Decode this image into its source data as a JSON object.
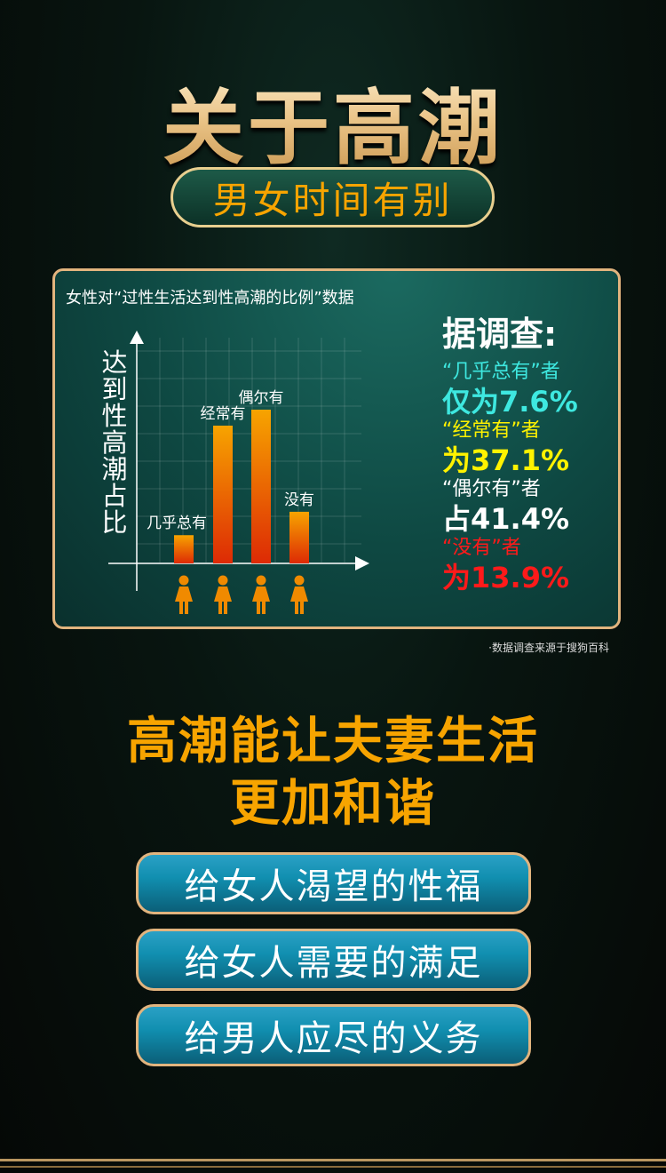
{
  "header": {
    "title": "关于高潮",
    "subtitle": "男女时间有别"
  },
  "panel": {
    "title": "女性对“过性生活达到性高潮的比例”数据",
    "heading": "据调查:",
    "findings": [
      {
        "label": "“几乎总有”者",
        "value": "仅为7.6%",
        "color": "#3ee8e0"
      },
      {
        "label": "“经常有”者",
        "value": "为37.1%",
        "color": "#fff200"
      },
      {
        "label": "“偶尔有”者",
        "value": "占41.4%",
        "color": "#ffffff"
      },
      {
        "label": "“没有”者",
        "value": "为13.9%",
        "color": "#ff1a1a"
      }
    ]
  },
  "chart_data": {
    "type": "bar",
    "ylabel": "达到性高潮占比",
    "categories": [
      "几乎总有",
      "经常有",
      "偶尔有",
      "没有"
    ],
    "values": [
      7.6,
      37.1,
      41.4,
      13.9
    ],
    "unit": "%",
    "grid": true,
    "bar_gradient": [
      "#f7a400",
      "#dd2a05"
    ],
    "icon": "woman-icon"
  },
  "source": "·数据调查来源于搜狗百科",
  "slogan": {
    "line1": "高潮能让夫妻生活",
    "line2": "更加和谐"
  },
  "buttons": [
    "给女人渴望的性福",
    "给女人需要的满足",
    "给男人应尽的义务"
  ]
}
